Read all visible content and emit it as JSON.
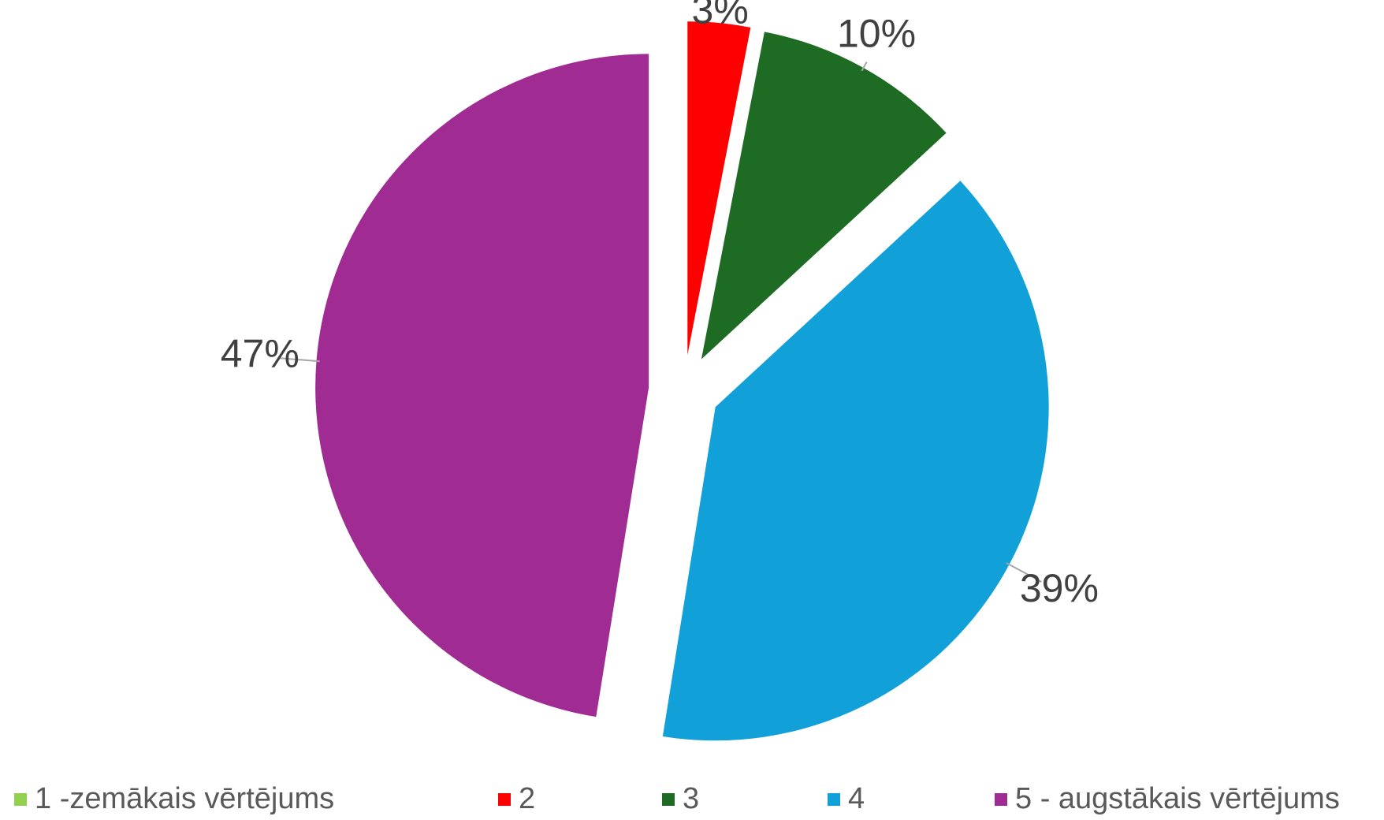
{
  "chart_data": {
    "type": "pie",
    "exploded": true,
    "start_angle": "12 o'clock, clockwise",
    "slices": [
      {
        "label": "1 -zemākais vērtējums",
        "value": 0,
        "data_label": "",
        "color": "#92d050"
      },
      {
        "label": "2",
        "value": 3,
        "data_label": "3%",
        "color": "#ff0000"
      },
      {
        "label": "3",
        "value": 10,
        "data_label": "10%",
        "color": "#1e6b24"
      },
      {
        "label": "4",
        "value": 39,
        "data_label": "39%",
        "color": "#11a0d8"
      },
      {
        "label": "5 - augstākais vērtējums",
        "value": 47,
        "data_label": "47%",
        "color": "#a02b92"
      }
    ],
    "legend_position": "bottom"
  }
}
